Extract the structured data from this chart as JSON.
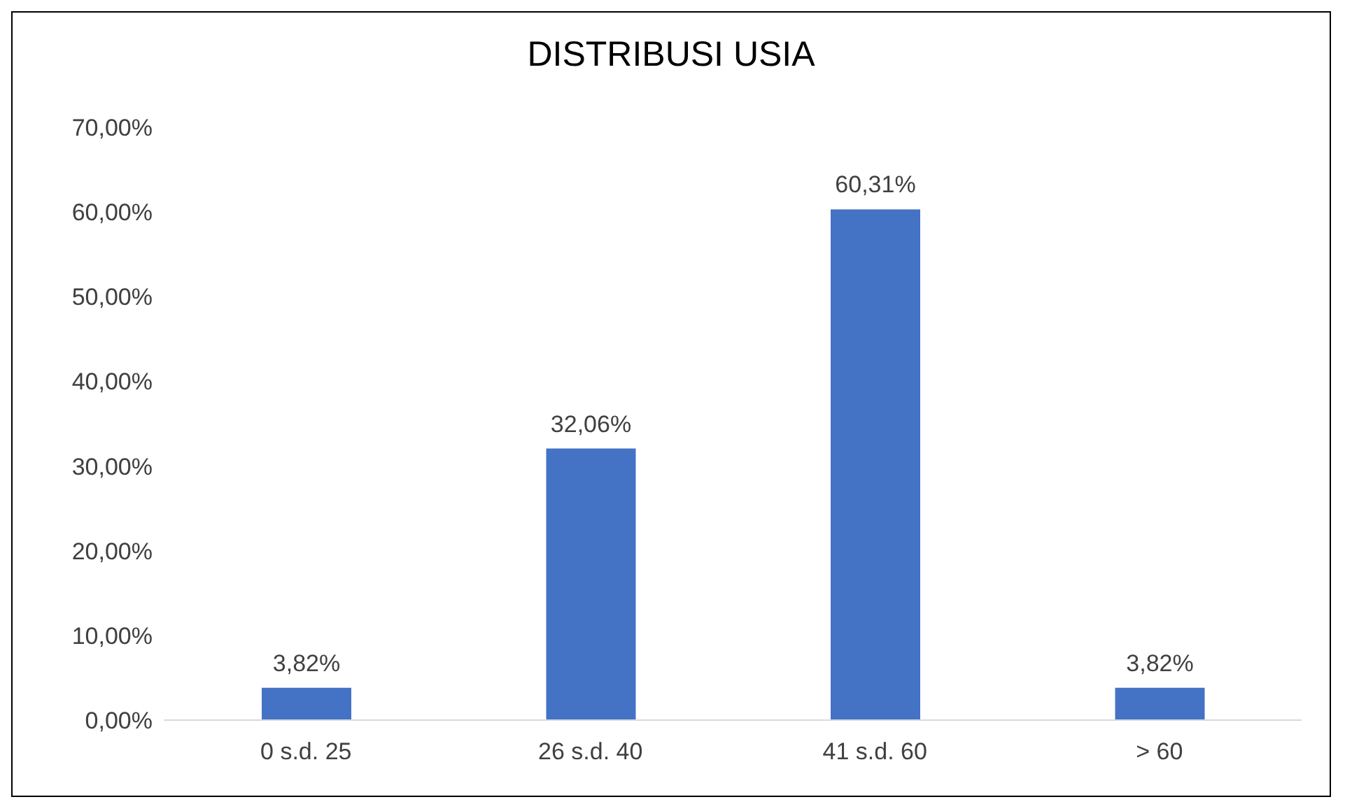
{
  "chart_data": {
    "type": "bar",
    "title": "DISTRIBUSI USIA",
    "categories": [
      "0 s.d. 25",
      "26 s.d. 40",
      "41 s.d. 60",
      "> 60"
    ],
    "values": [
      3.82,
      32.06,
      60.31,
      3.82
    ],
    "value_labels": [
      "3,82%",
      "32,06%",
      "60,31%",
      "3,82%"
    ],
    "color": "#4472c4",
    "ylim": [
      0,
      70
    ],
    "yticks": [
      {
        "value": 0,
        "label": "0,00%"
      },
      {
        "value": 10,
        "label": "10,00%"
      },
      {
        "value": 20,
        "label": "20,00%"
      },
      {
        "value": 30,
        "label": "30,00%"
      },
      {
        "value": 40,
        "label": "40,00%"
      },
      {
        "value": 50,
        "label": "50,00%"
      },
      {
        "value": 60,
        "label": "60,00%"
      },
      {
        "value": 70,
        "label": "70,00%"
      }
    ]
  }
}
